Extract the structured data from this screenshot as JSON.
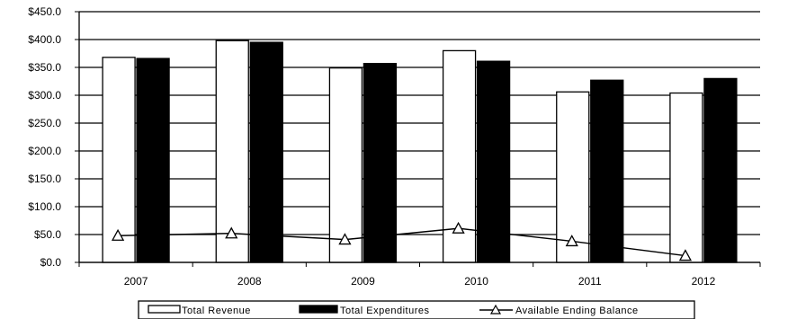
{
  "chart_data": {
    "type": "bar",
    "title": "",
    "xlabel": "",
    "ylabel": "",
    "categories": [
      "2007",
      "2008",
      "2009",
      "2010",
      "2011",
      "2012"
    ],
    "ylim": [
      0,
      450
    ],
    "y_ticks": [
      0,
      50,
      100,
      150,
      200,
      250,
      300,
      350,
      400,
      450
    ],
    "y_tick_labels": [
      "$0.0",
      "$50.0",
      "$100.0",
      "$150.0",
      "$200.0",
      "$250.0",
      "$300.0",
      "$350.0",
      "$400.0",
      "$450.0"
    ],
    "grid": true,
    "legend_position": "bottom",
    "series": [
      {
        "name": "Total Revenue",
        "kind": "bar",
        "color": "#ffffff",
        "values": [
          368,
          398,
          349,
          380,
          306,
          304
        ]
      },
      {
        "name": "Total Expenditures",
        "kind": "bar",
        "color": "#000000",
        "values": [
          366,
          395,
          357,
          361,
          327,
          330
        ]
      },
      {
        "name": "Available Ending Balance",
        "kind": "line",
        "marker": "triangle",
        "color": "#000000",
        "values": [
          48,
          52,
          41,
          61,
          38,
          12
        ]
      }
    ]
  }
}
